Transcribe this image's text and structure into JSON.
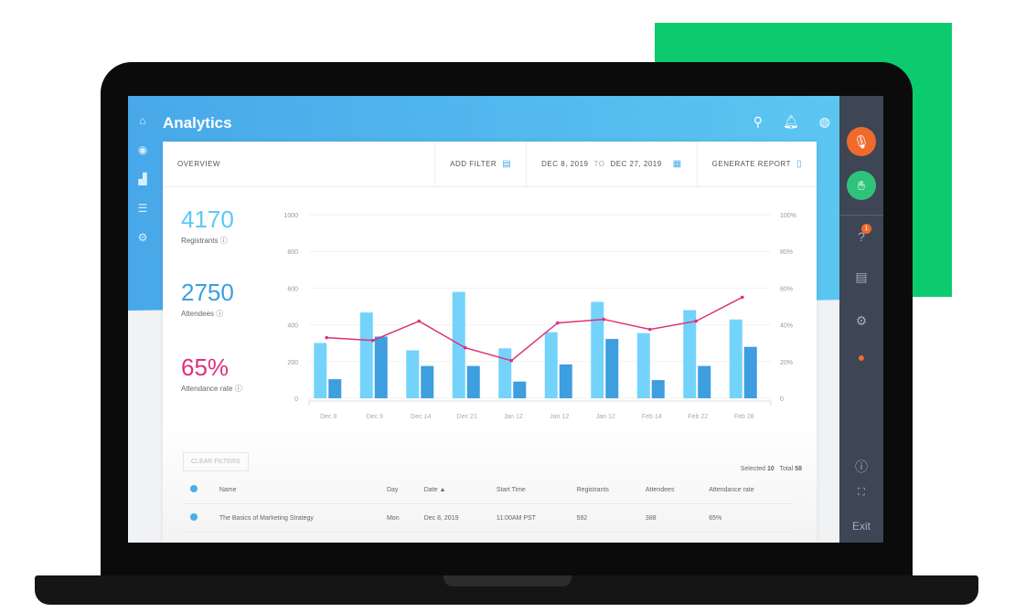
{
  "app": {
    "title": "Analytics"
  },
  "toolbar": {
    "overview": "OVERVIEW",
    "add_filter": "ADD FILTER",
    "date_from": "DEC 8, 2019",
    "to": "TO",
    "date_to": "DEC 27, 2019",
    "generate_report": "GENERATE REPORT"
  },
  "stats": [
    {
      "value": "4170",
      "label": "Registrants"
    },
    {
      "value": "2750",
      "label": "Attendees"
    },
    {
      "value": "65%",
      "label": "Attendance rate"
    }
  ],
  "colors": {
    "accent": "#4aaee8",
    "registrants": "#74d3fa",
    "attendees": "#3d9ee0",
    "rate": "#e0307a",
    "green": "#0ccb6e",
    "orange": "#f06a2c"
  },
  "chart_data": {
    "type": "bar",
    "categories": [
      "Dec 8",
      "Dec 9",
      "Dec 14",
      "Dec 21",
      "Jan 12",
      "Jan 12",
      "Jan 12",
      "Feb 14",
      "Feb 22",
      "Feb 28"
    ],
    "y_ticks": [
      "0",
      "200",
      "400",
      "600",
      "800",
      "1000"
    ],
    "y2_ticks": [
      "0",
      "20%",
      "40%",
      "60%",
      "80%",
      "100%"
    ],
    "ylim": [
      0,
      1000
    ],
    "y2lim": [
      0,
      100
    ],
    "series": [
      {
        "type": "bar",
        "values": [
          301,
          467,
          261,
          579,
          272,
          360,
          525,
          355,
          480,
          429
        ]
      },
      {
        "type": "bar",
        "values": [
          104,
          336,
          176,
          176,
          91,
          184,
          323,
          99,
          176,
          280
        ]
      },
      {
        "type": "line",
        "axis": "right",
        "values": [
          33,
          31.5,
          42,
          27.5,
          20.5,
          41,
          43,
          37.5,
          42,
          55
        ]
      }
    ]
  },
  "table": {
    "clear_filters": "CLEAR FILTERS",
    "selected_label": "Selected",
    "selected": "10",
    "total_label": "Total",
    "total": "58",
    "headers": [
      "Name",
      "Day",
      "Date ▲",
      "Start Time",
      "Registrants",
      "Attendees",
      "Attendance rate"
    ],
    "rows": [
      [
        "The Basics of Marketing Strategy",
        "Mon",
        "Dec 8, 2019",
        "11:00AM PST",
        "592",
        "388",
        "65%"
      ]
    ]
  },
  "side": {
    "badge": "1",
    "exit": "Exit"
  }
}
